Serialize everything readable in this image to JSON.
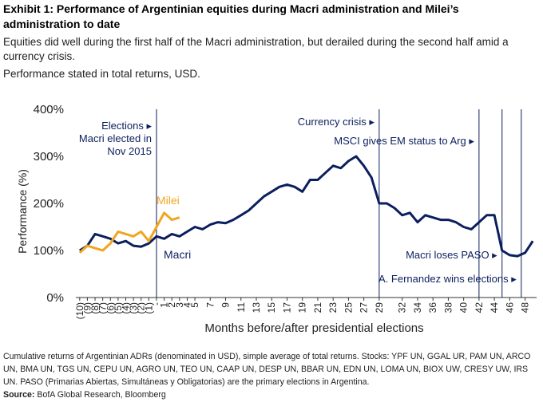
{
  "chart_data": {
    "type": "line",
    "title": "Exhibit 1: Performance of Argentinian equities during Macri administration and Milei’s administration to date",
    "subtitle": [
      "Equities did well during the first half of the Macri administration, but derailed during the second half amid a currency crisis.",
      "Performance stated in total returns, USD."
    ],
    "x_label": "Months before/after presidential elections",
    "y_label": "Performance (%)",
    "x": [
      -10,
      -9,
      -8,
      -7,
      -6,
      -5,
      -4,
      -3,
      -2,
      -1,
      0,
      1,
      2,
      3,
      4,
      5,
      6,
      7,
      8,
      9,
      10,
      11,
      12,
      13,
      14,
      15,
      16,
      17,
      18,
      19,
      20,
      21,
      22,
      23,
      24,
      25,
      26,
      27,
      28,
      29,
      30,
      31,
      32,
      33,
      34,
      35,
      36,
      37,
      38,
      39,
      40,
      41,
      42,
      43,
      44,
      45,
      46,
      47,
      48,
      49
    ],
    "series": [
      {
        "name": "Macri",
        "color": "#0b1f5e",
        "values": [
          100,
          110,
          135,
          130,
          125,
          115,
          120,
          110,
          108,
          115,
          130,
          125,
          135,
          130,
          140,
          150,
          145,
          155,
          160,
          158,
          165,
          175,
          185,
          200,
          215,
          225,
          235,
          240,
          235,
          225,
          250,
          250,
          265,
          280,
          275,
          290,
          300,
          280,
          255,
          200,
          200,
          190,
          175,
          180,
          160,
          175,
          170,
          165,
          165,
          160,
          150,
          145,
          160,
          175,
          175,
          100,
          90,
          88,
          95,
          120
        ]
      },
      {
        "name": "Milei",
        "color": "#f2a51f",
        "values": [
          95,
          110,
          105,
          100,
          115,
          140,
          135,
          130,
          140,
          120,
          150,
          180,
          165,
          170,
          null,
          null,
          null,
          null,
          null,
          null,
          null,
          null,
          null,
          null,
          null,
          null,
          null,
          null,
          null,
          null,
          null,
          null,
          null,
          null,
          null,
          null,
          null,
          null,
          null,
          null,
          null,
          null,
          null,
          null,
          null,
          null,
          null,
          null,
          null,
          null,
          null,
          null,
          null,
          null,
          null,
          null,
          null,
          null,
          null,
          null
        ]
      }
    ],
    "xlim": [
      -10.5,
      49.5
    ],
    "xticks": [
      {
        "value": -10,
        "label": "(10)"
      },
      {
        "value": -9,
        "label": "(9)"
      },
      {
        "value": -8,
        "label": "(8)"
      },
      {
        "value": -7,
        "label": "(7)"
      },
      {
        "value": -6,
        "label": "(6)"
      },
      {
        "value": -5,
        "label": "(5)"
      },
      {
        "value": -4,
        "label": "(4)"
      },
      {
        "value": -3,
        "label": "(3)"
      },
      {
        "value": -2,
        "label": "(2)"
      },
      {
        "value": -1,
        "label": "(1)"
      },
      {
        "value": 0,
        "label": "-"
      },
      1,
      2,
      3,
      4,
      5,
      7,
      9,
      11,
      13,
      15,
      17,
      19,
      21,
      23,
      25,
      27,
      29,
      32,
      34,
      36,
      38,
      40,
      42,
      44,
      46,
      48
    ],
    "ylim": [
      0,
      400
    ],
    "yticks": [
      {
        "value": 0,
        "label": "0%"
      },
      {
        "value": 100,
        "label": "100%"
      },
      {
        "value": 200,
        "label": "200%"
      },
      {
        "value": 300,
        "label": "300%"
      },
      {
        "value": 400,
        "label": "400%"
      }
    ],
    "annotations": [
      {
        "x": 0,
        "lines": [
          "Elections ▸",
          "Macri elected in",
          "Nov 2015"
        ]
      },
      {
        "x": 29,
        "lines": [
          "Currency crisis ▸"
        ]
      },
      {
        "x": 42,
        "lines": [
          "MSCI gives EM status to Arg ▸"
        ]
      },
      {
        "x": 45,
        "lines": [
          "Macri loses PASO ▸"
        ]
      },
      {
        "x": 47.5,
        "lines": [
          "A. Fernandez wins elections ▸"
        ]
      }
    ],
    "annotation_color": "#0b1f5e",
    "footnote": "Cumulative returns of Argentinian ADRs (denominated in USD), simple average of total returns. Stocks: YPF UN, GGAL UR, PAM UN, ARCO UN, BMA UN, TGS UN, CEPU UN, AGRO UN, TEO UN, CAAP UN, DESP UN, BBAR UN, EDN UN, LOMA UN, BIOX UW, CRESY UW, IRS UN. PASO (Primarias Abiertas, Simultáneas y Obligatorias) are the primary elections in Argentina.",
    "source_label": "Source:",
    "source": "BofA Global Research, Bloomberg"
  }
}
